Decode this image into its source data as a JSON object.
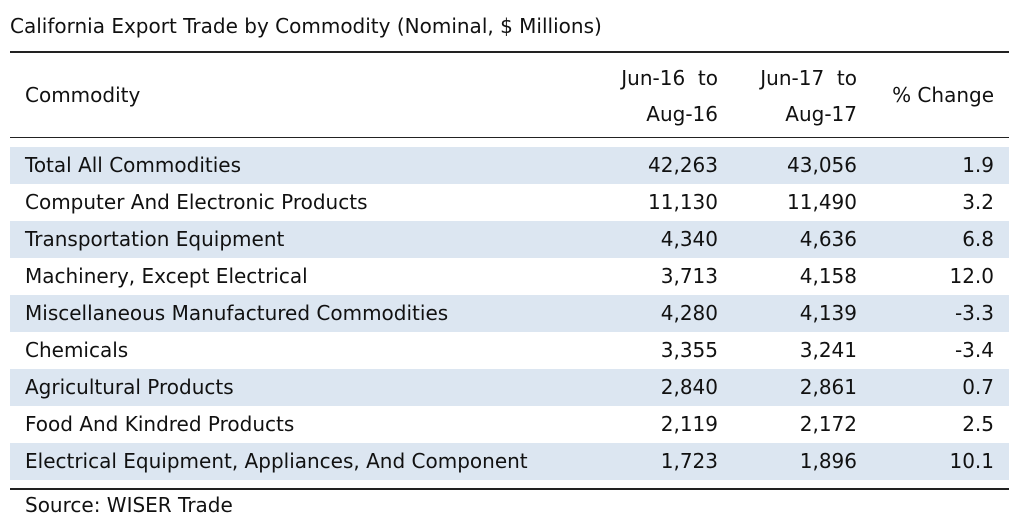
{
  "title": "California Export Trade by Commodity (Nominal, $ Millions)",
  "source": "Source: WISER Trade",
  "chart_data": {
    "type": "table",
    "title": "California Export Trade by Commodity (Nominal, $ Millions)",
    "columns": [
      "Commodity",
      "Jun-16 to Aug-16",
      "Jun-17 to Aug-17",
      "% Change"
    ],
    "header": {
      "commodity": "Commodity",
      "col1_line1": "Jun-16  to",
      "col1_line2": "Aug-16",
      "col2_line1": "Jun-17  to",
      "col2_line2": "Aug-17",
      "col3": "% Change"
    },
    "rows": [
      {
        "name": "Total All Commodities",
        "v1": "42,263",
        "v2": "43,056",
        "v3": "1.9"
      },
      {
        "name": "Computer And Electronic Products",
        "v1": "11,130",
        "v2": "11,490",
        "v3": "3.2"
      },
      {
        "name": "Transportation Equipment",
        "v1": "4,340",
        "v2": "4,636",
        "v3": "6.8"
      },
      {
        "name": "Machinery, Except Electrical",
        "v1": "3,713",
        "v2": "4,158",
        "v3": "12.0"
      },
      {
        "name": "Miscellaneous Manufactured Commodities",
        "v1": "4,280",
        "v2": "4,139",
        "v3": "-3.3"
      },
      {
        "name": "Chemicals",
        "v1": "3,355",
        "v2": "3,241",
        "v3": "-3.4"
      },
      {
        "name": "Agricultural Products",
        "v1": "2,840",
        "v2": "2,861",
        "v3": "0.7"
      },
      {
        "name": "Food And Kindred Products",
        "v1": "2,119",
        "v2": "2,172",
        "v3": "2.5"
      },
      {
        "name": "Electrical Equipment, Appliances, And Component",
        "v1": "1,723",
        "v2": "1,896",
        "v3": "10.1"
      }
    ],
    "shaded_rows": [
      0,
      2,
      4,
      6,
      8
    ],
    "shade_color": "#dce6f1"
  }
}
